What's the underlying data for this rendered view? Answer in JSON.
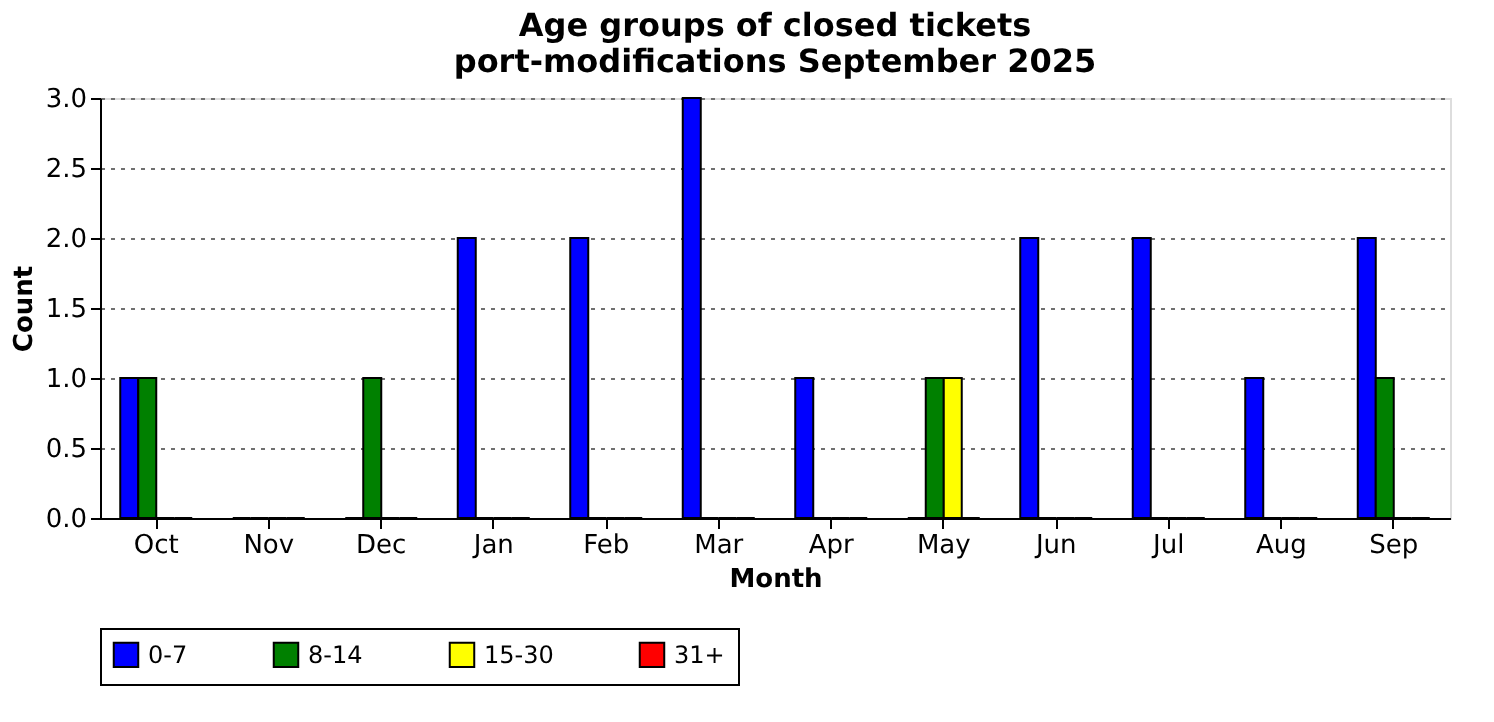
{
  "chart_data": {
    "type": "bar",
    "title": "Age groups of closed tickets\nport-modifications September 2025",
    "xlabel": "Month",
    "ylabel": "Count",
    "categories": [
      "Oct",
      "Nov",
      "Dec",
      "Jan",
      "Feb",
      "Mar",
      "Apr",
      "May",
      "Jun",
      "Jul",
      "Aug",
      "Sep"
    ],
    "series": [
      {
        "name": "0-7",
        "color": "#0000ff",
        "values": [
          1,
          0,
          0,
          2,
          2,
          3,
          1,
          0,
          2,
          2,
          1,
          2
        ]
      },
      {
        "name": "8-14",
        "color": "#008000",
        "values": [
          1,
          0,
          1,
          0,
          0,
          0,
          0,
          1,
          0,
          0,
          0,
          1
        ]
      },
      {
        "name": "15-30",
        "color": "#ffff00",
        "values": [
          0,
          0,
          0,
          0,
          0,
          0,
          0,
          1,
          0,
          0,
          0,
          0
        ]
      },
      {
        "name": "31+",
        "color": "#ff0000",
        "values": [
          0,
          0,
          0,
          0,
          0,
          0,
          0,
          0,
          0,
          0,
          0,
          0
        ]
      }
    ],
    "ylim": [
      0,
      3
    ],
    "yticks": [
      {
        "value": 0,
        "label": "0.0"
      },
      {
        "value": 0.5,
        "label": "0.5"
      },
      {
        "value": 1,
        "label": "1.0"
      },
      {
        "value": 1.5,
        "label": "1.5"
      },
      {
        "value": 2,
        "label": "2.0"
      },
      {
        "value": 2.5,
        "label": "2.5"
      },
      {
        "value": 3,
        "label": "3.0"
      }
    ],
    "grid": "y",
    "legend": "bottom"
  }
}
